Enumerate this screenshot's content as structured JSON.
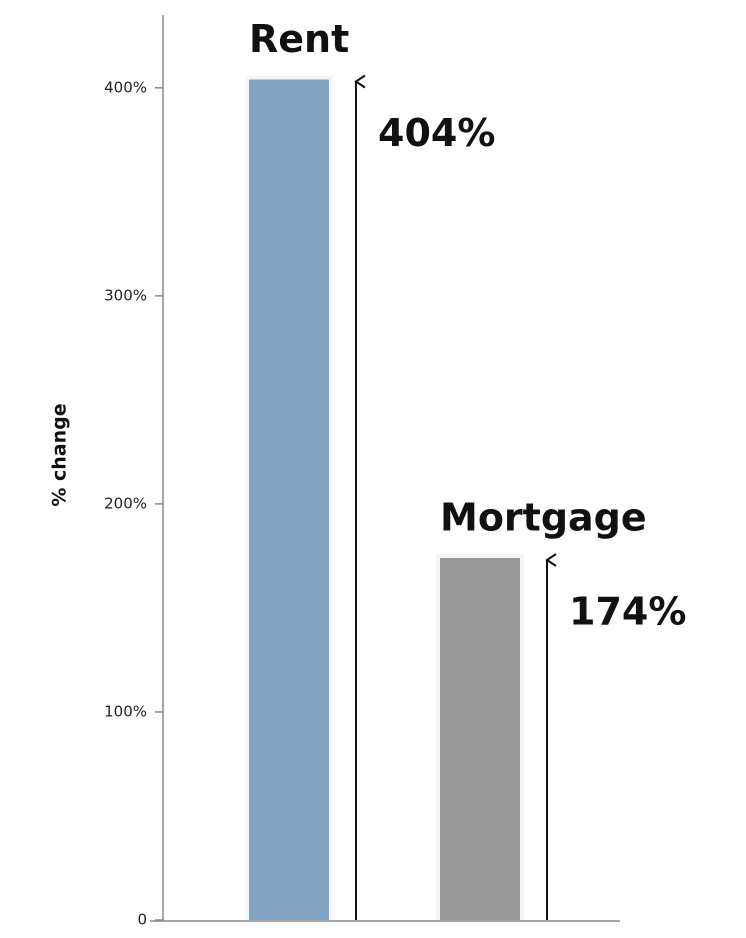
{
  "chart_data": {
    "type": "bar",
    "ylabel": "% change",
    "categories": [
      "Rent",
      "Mortgage"
    ],
    "values": [
      404,
      174
    ],
    "value_labels": [
      "404%",
      "174%"
    ],
    "colors": [
      "#82a5c4",
      "#999999"
    ],
    "ylim": [
      0,
      435
    ],
    "yticks": [
      0,
      {
        "value": 100,
        "label": "100%"
      },
      {
        "value": 200,
        "label": "200%"
      },
      {
        "value": 300,
        "label": "300%"
      },
      {
        "value": 400,
        "label": "400%"
      }
    ]
  }
}
